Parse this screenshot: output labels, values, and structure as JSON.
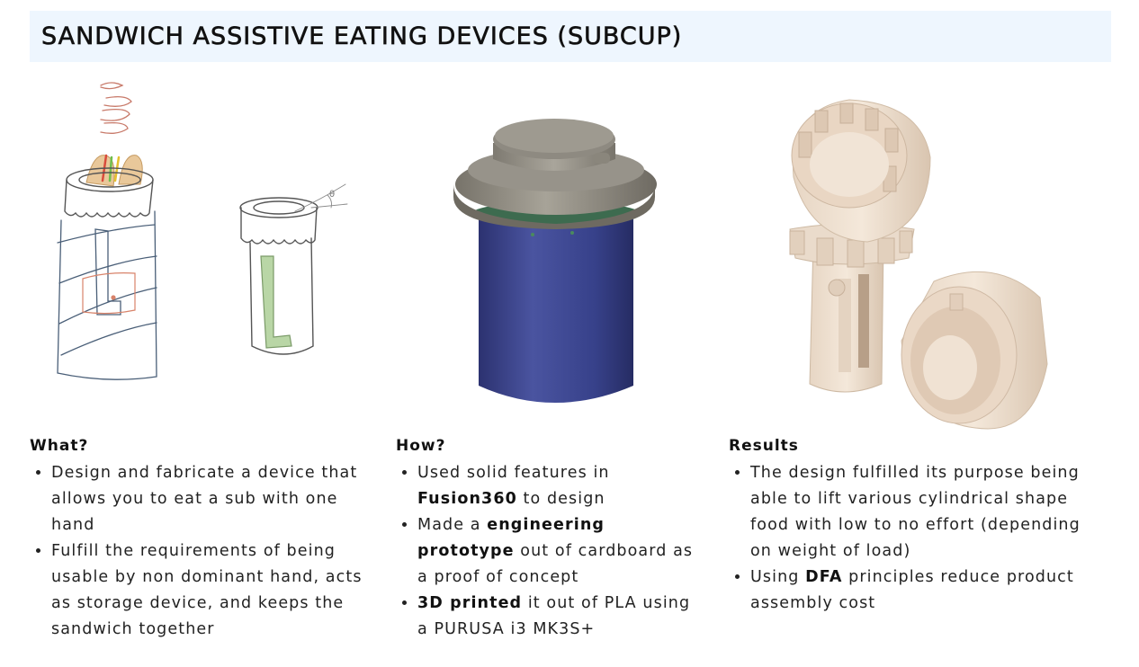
{
  "header": {
    "title": "SANDWICH ASSISTIVE EATING DEVICES (SUBCUP)"
  },
  "sections": [
    {
      "heading": "What?",
      "bullets": [
        [
          {
            "t": "Design and fabricate a device that allows you to eat a sub with one hand"
          }
        ],
        [
          {
            "t": "Fulfill the requirements of being usable by non dominant hand, acts as storage device, and keeps the sandwich together"
          }
        ]
      ]
    },
    {
      "heading": "How?",
      "bullets": [
        [
          {
            "t": "Used solid features in "
          },
          {
            "t": "Fusion360",
            "b": true
          },
          {
            "t": " to design"
          }
        ],
        [
          {
            "t": "Made a "
          },
          {
            "t": "engineering prototype",
            "b": true
          },
          {
            "t": " out of cardboard as a proof of concept"
          }
        ],
        [
          {
            "t": "3D printed",
            "b": true
          },
          {
            "t": " it out of PLA using a PURUSA i3 MK3S+"
          }
        ]
      ]
    },
    {
      "heading": "Results",
      "bullets": [
        [
          {
            "t": "The design fulfilled its purpose being able to lift various cylindrical shape food with low to no effort (depending on weight of load)"
          }
        ],
        [
          {
            "t": "Using "
          },
          {
            "t": "DFA",
            "b": true
          },
          {
            "t": " principles reduce product assembly cost"
          }
        ]
      ]
    }
  ],
  "figures": {
    "sketch_angle_label": "θ"
  }
}
